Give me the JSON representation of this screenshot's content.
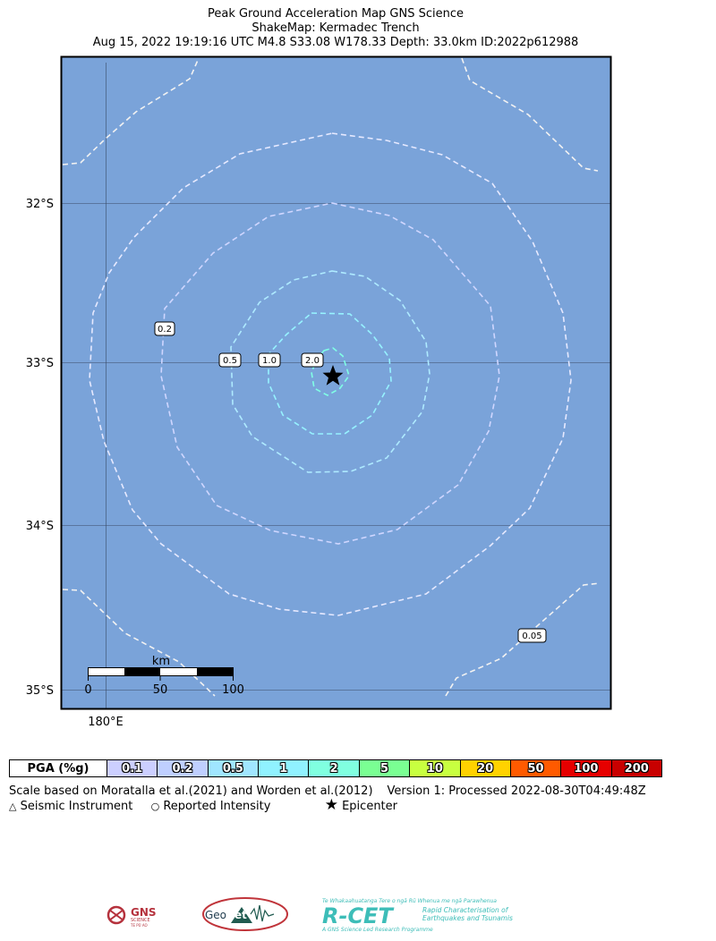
{
  "title": {
    "line1": "Peak Ground Acceleration Map GNS Science",
    "line2": "ShakeMap: Kermadec Trench",
    "line3": "Aug 15, 2022 19:19:16 UTC M4.8 S33.08 W178.33 Depth: 33.0km ID:2022p612988"
  },
  "map": {
    "background_color": "#7aa3d9",
    "lat_labels": [
      "32°S",
      "33°S",
      "34°S",
      "35°S"
    ],
    "lon_labels": [
      "180°E"
    ],
    "contour_labels": [
      "0.2",
      "0.5",
      "1.0",
      "2.0",
      "0.05"
    ],
    "epicenter_icon": "star-icon",
    "scale_bar": {
      "unit": "km",
      "ticks": [
        "0",
        "50",
        "100"
      ]
    }
  },
  "legend": {
    "header": "PGA (%g)",
    "bins": [
      {
        "label": "0.1",
        "color": "#cccfff"
      },
      {
        "label": "0.2",
        "color": "#bfcfff"
      },
      {
        "label": "0.5",
        "color": "#a0e6ff"
      },
      {
        "label": "1",
        "color": "#90f2ff"
      },
      {
        "label": "2",
        "color": "#80ffe0"
      },
      {
        "label": "5",
        "color": "#7aff93"
      },
      {
        "label": "10",
        "color": "#c8ff40"
      },
      {
        "label": "20",
        "color": "#ffd200"
      },
      {
        "label": "50",
        "color": "#ff5a00"
      },
      {
        "label": "100",
        "color": "#e60000"
      },
      {
        "label": "200",
        "color": "#c80000"
      }
    ]
  },
  "notes": {
    "scale_text": "Scale based on Moratalla et al.(2021) and Worden et al.(2012)",
    "version_text": "Version 1: Processed 2022-08-30T04:49:48Z",
    "symbols": [
      {
        "icon": "triangle-icon",
        "label": "Seismic Instrument"
      },
      {
        "icon": "circle-icon",
        "label": "Reported Intensity"
      },
      {
        "icon": "star-icon",
        "label": "Epicenter"
      }
    ]
  },
  "logos": {
    "gns": {
      "text": "GNS",
      "sub": "SCIENCE",
      "sub2": "TE PŪ AO"
    },
    "geonet": {
      "text_a": "Geo",
      "text_b": "Net"
    },
    "rcet": {
      "tagline": "Te Whakaahuatanga Tere o ngā Rū Whenua me ngā Parawhenua",
      "name": "R-CET",
      "line1": "Rapid Characterisation of",
      "line2": "Earthquakes and Tsunamis",
      "footer": "A GNS Science Led Research Programme"
    }
  }
}
